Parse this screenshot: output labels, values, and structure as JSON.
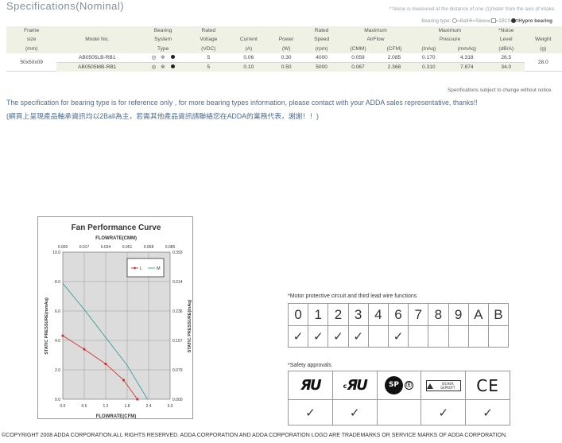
{
  "title": "Specifications(Nominal)",
  "noise_note": "*:Noise is measured at the distance of one (1)meter from the axis of intake.",
  "bearing_legend": {
    "prefix": "Bearing type:",
    "ball": "=Ball",
    "sleeve": "=Sleeve",
    "one_b_one_s": "=1B1S",
    "hypro": "=Hypro bearing"
  },
  "table": {
    "headers": {
      "frame": [
        "Frame",
        "size",
        "(mm)"
      ],
      "model": "Model No.",
      "bearing": [
        "Bearing",
        "System",
        "Type"
      ],
      "voltage": [
        "Rated",
        "Voltage",
        "(VDC)"
      ],
      "current": [
        "Current",
        "(A)"
      ],
      "power": [
        "Power",
        "(W)"
      ],
      "speed": [
        "Rated",
        "Speed",
        "(rpm)"
      ],
      "airflow": [
        "Maximum",
        "AirFlow"
      ],
      "airflow_units": [
        "(CMM)",
        "(CFM)"
      ],
      "pressure": [
        "Maximum",
        "Pressure"
      ],
      "pressure_units": [
        "(InAq)",
        "(mmAq)"
      ],
      "noise": [
        "*Noise",
        "Level",
        "(dB/A)"
      ],
      "weight": [
        "Weight",
        "(g)"
      ]
    },
    "frame_size": "50x50x09",
    "weight": "28.0",
    "bearing_symbols": "◎ ※",
    "rows": [
      {
        "model": "AB0505LB-RB1",
        "voltage": "5",
        "current": "0.06",
        "power": "0.30",
        "speed": "4000",
        "cmm": "0.059",
        "cfm": "2.085",
        "inaq": "0.170",
        "mmaq": "4.318",
        "noise": "26.5"
      },
      {
        "model": "AB0505MB-RB1",
        "voltage": "5",
        "current": "0.10",
        "power": "0.50",
        "speed": "5000",
        "cmm": "0.067",
        "cfm": "2.368",
        "inaq": "0.310",
        "mmaq": "7.874",
        "noise": "34.0"
      }
    ]
  },
  "subject_note": "Specifications subject to change without notice.",
  "info_en": "The specification for bearing type is for reference only , for more bearing types information, please contact with your ADDA sales representative, thanks!!",
  "info_zh": "(網頁上呈現產品軸承資訊均以2Ball為主，若需其他產品資訊請聯絡您在ADDA的業務代表，謝謝！！)",
  "chart_data": {
    "type": "line",
    "title": "Fan Performance Curve",
    "xlabel": "FLOWRATE(CFM)",
    "x2label": "FLOWRATE(CMM)",
    "ylabel": "STATIC PRESSURE(mmAq)",
    "y2label": "STATIC PRESSURE(InAq)",
    "xlim": [
      0,
      3.0
    ],
    "ylim": [
      0,
      10.0
    ],
    "x_ticks": [
      "0.0",
      "0.6",
      "1.2",
      "1.8",
      "2.4",
      "3.0"
    ],
    "x2_ticks": [
      "0.000",
      "0.017",
      "0.034",
      "0.051",
      "0.068",
      "0.085"
    ],
    "y_ticks": [
      "0.0",
      "2.0",
      "4.0",
      "6.0",
      "8.0",
      "10.0"
    ],
    "y2_ticks": [
      "0.000",
      "0.079",
      "0.157",
      "0.236",
      "0.314",
      "0.393"
    ],
    "grid": true,
    "legend": "top-right",
    "series": [
      {
        "name": "L",
        "color": "#cc3333",
        "x": [
          0.0,
          0.6,
          1.2,
          1.7,
          2.085
        ],
        "y": [
          4.318,
          3.4,
          2.4,
          1.3,
          0.0
        ]
      },
      {
        "name": "M",
        "color": "#3aa39a",
        "x": [
          0.0,
          0.6,
          1.2,
          1.8,
          2.368
        ],
        "y": [
          7.874,
          6.1,
          4.2,
          2.3,
          0.0
        ]
      }
    ]
  },
  "motor": {
    "label": "*Motor protective circuit and third lead wire functions",
    "codes": [
      "0",
      "1",
      "2",
      "3",
      "4",
      "6",
      "7",
      "8",
      "9",
      "A",
      "B"
    ],
    "checks": [
      "✓",
      "✓",
      "✓",
      "✓",
      "",
      "✓",
      "",
      "",
      "",
      "",
      ""
    ]
  },
  "safety": {
    "label": "*Safety approvals",
    "logos": [
      {
        "icon": "ul-logo",
        "text": "ЯU"
      },
      {
        "icon": "cul-logo",
        "prefix": "c",
        "text": "ЯU"
      },
      {
        "icon": "csa-logo",
        "text": "SP",
        "suffix": "®"
      },
      {
        "icon": "tuv-logo",
        "text": "SICHER GEPRÜFT"
      },
      {
        "icon": "ce-logo",
        "text": "CE"
      }
    ],
    "checks": [
      "✓",
      "✓",
      "",
      "✓",
      "✓"
    ]
  },
  "copyright": "©COPYRIGHT 2008 ADDA CORPORATION.ALL RIGHTS RESERVED. ADDA CORPORATION AND ADDA  CORPORATION LOGO ARE TRADEMARKS OR SERVICE MARKS OF ADDA CORPORATION."
}
